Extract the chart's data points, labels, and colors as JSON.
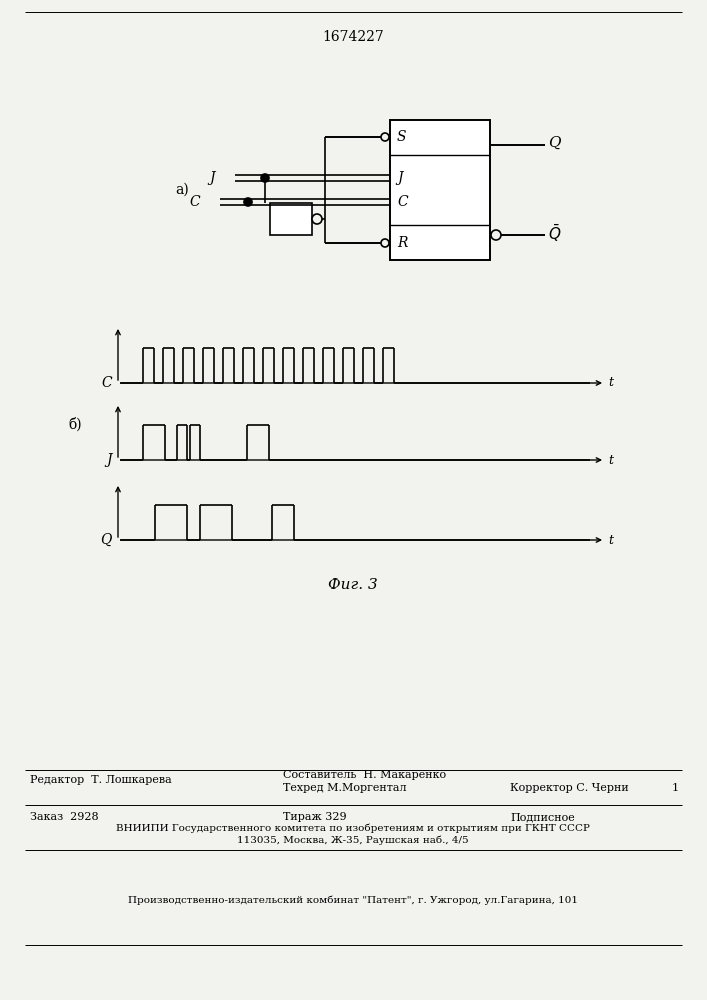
{
  "patent_number": "1674227",
  "paper_color": "#f2f2ee",
  "fig_label_a": "a)",
  "fig_label_b": "б)",
  "fig_caption": "Фиг. 3",
  "footer_line1_left": "Редактор  Т. Лошкарева",
  "footer_line1_center": "Составитель  Н. Макаренко",
  "footer_line2_center": "Техред М.Моргентал",
  "footer_line2_right": "Корректор С. Черни",
  "footer_line3_left": "Заказ  2928",
  "footer_line3_center": "Тираж 329",
  "footer_line3_right": "Подписное",
  "footer_line4": "ВНИИПИ Государственного комитета по изобретениям и открытиям при ГКНТ СССР",
  "footer_line5": "113035, Москва, Ж-35, Раушская наб., 4/5",
  "footer_last": "Производственно-издательский комбинат \"Патент\", г. Ужгород, ул.Гагарина, 101"
}
